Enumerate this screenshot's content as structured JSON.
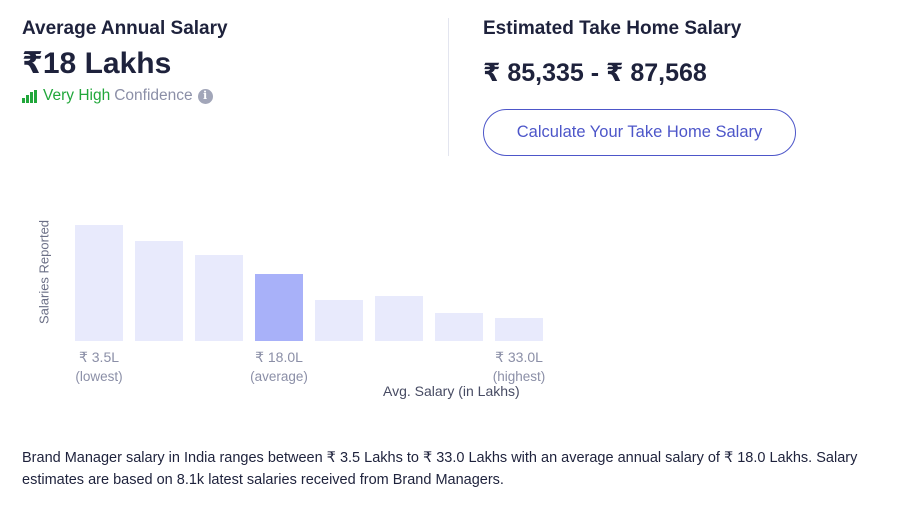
{
  "average": {
    "title": "Average Annual Salary",
    "value": "₹18 Lakhs",
    "confidence_level": "Very High",
    "confidence_label": "Confidence",
    "info_icon": "info-icon"
  },
  "take_home": {
    "title": "Estimated Take Home Salary",
    "value": "₹ 85,335 - ₹ 87,568",
    "button_label": "Calculate Your Take Home Salary"
  },
  "chart_data": {
    "type": "bar",
    "ylabel": "Salaries Reported",
    "xlabel": "Avg. Salary (in Lakhs)",
    "values": [
      100,
      86,
      74,
      58,
      35,
      39,
      24,
      20
    ],
    "highlight_index": 3,
    "tick_labels": [
      {
        "index": 0,
        "label": "₹ 3.5L",
        "sub": "(lowest)"
      },
      {
        "index": 3,
        "label": "₹ 18.0L",
        "sub": "(average)"
      },
      {
        "index": 7,
        "label": "₹ 33.0L",
        "sub": "(highest)"
      }
    ],
    "colors": {
      "bar": "#e8eafc",
      "highlight": "#a8b1f9"
    }
  },
  "description": "Brand Manager salary in India ranges between ₹ 3.5 Lakhs to ₹ 33.0 Lakhs with an average annual salary of ₹ 18.0 Lakhs. Salary estimates are based on 8.1k latest salaries received from Brand Managers.",
  "colors": {
    "accent": "#4d56c9",
    "confidence": "#21a73b",
    "text": "#1e223c",
    "muted": "#8b8fa7"
  }
}
